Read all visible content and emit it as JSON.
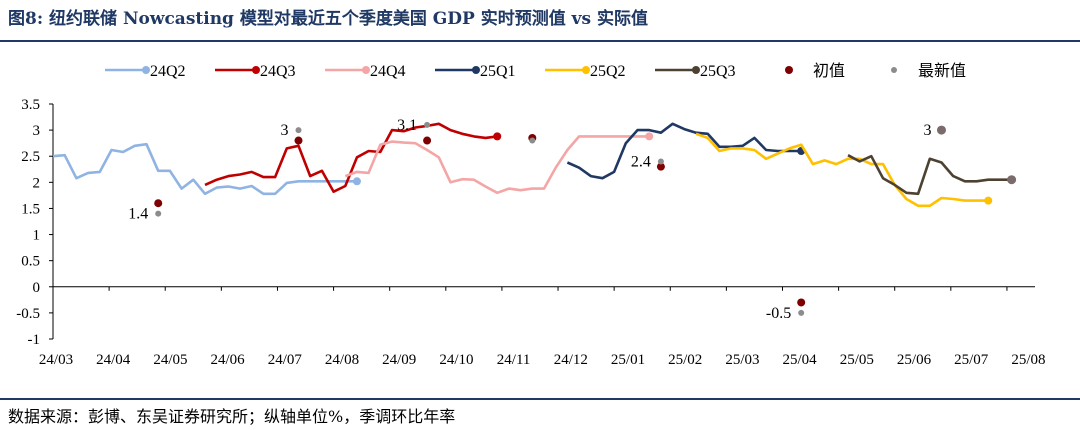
{
  "figure": {
    "title": "图8:  纽约联储 Nowcasting 模型对最近五个季度美国 GDP 实时预测值 vs 实际值",
    "source": "数据来源：彭博、东吴证券研究所；纵轴单位%，季调环比年率"
  },
  "colors": {
    "24Q2": "#8fb4e3",
    "24Q3": "#c00000",
    "24Q4": "#f4a6a6",
    "25Q1": "#1f3864",
    "25Q2": "#ffc000",
    "25Q3": "#4d4232",
    "initial": "#7f0000",
    "latest": "#8c8c8c",
    "title": "#1f3864"
  },
  "chart_data": {
    "type": "line",
    "ylim": [
      -1,
      3.5
    ],
    "yticks": [
      "3.5",
      "3",
      "2.5",
      "2",
      "1.5",
      "1",
      "0.5",
      "0",
      "-0.5",
      "-1"
    ],
    "xticks": [
      "24/03",
      "24/04",
      "24/05",
      "24/06",
      "24/07",
      "24/08",
      "24/09",
      "24/10",
      "24/11",
      "24/12",
      "25/01",
      "25/02",
      "25/03",
      "25/04",
      "25/05",
      "25/06",
      "25/07",
      "25/08"
    ],
    "legend_position": "top",
    "series": [
      {
        "name": "24Q2",
        "x": [
          0,
          1,
          2,
          3,
          4,
          5,
          6,
          7,
          8,
          9,
          10,
          11,
          12,
          13,
          14,
          15,
          16,
          17,
          18,
          19,
          20,
          21,
          22,
          23,
          24,
          25,
          26
        ],
        "values": [
          2.5,
          2.52,
          2.08,
          2.18,
          2.2,
          2.62,
          2.58,
          2.7,
          2.73,
          2.22,
          2.22,
          1.88,
          2.05,
          1.78,
          1.9,
          1.92,
          1.88,
          1.93,
          1.78,
          1.78,
          1.99,
          2.02,
          2.02,
          2.02,
          2.02,
          2.02,
          2.02
        ],
        "end_marker": true
      },
      {
        "name": "24Q3",
        "x": [
          13,
          14,
          15,
          16,
          17,
          18,
          19,
          20,
          21,
          22,
          23,
          24,
          25,
          26,
          27,
          28,
          29,
          30,
          31,
          32,
          33,
          34,
          35,
          36,
          37,
          38
        ],
        "values": [
          1.95,
          2.05,
          2.12,
          2.15,
          2.2,
          2.1,
          2.1,
          2.65,
          2.7,
          2.12,
          2.22,
          1.82,
          1.93,
          2.48,
          2.6,
          2.58,
          3.0,
          2.98,
          3.05,
          3.08,
          3.12,
          3.0,
          2.93,
          2.88,
          2.85,
          2.88
        ],
        "end_marker": true
      },
      {
        "name": "24Q4",
        "x": [
          25,
          26,
          27,
          28,
          29,
          30,
          31,
          32,
          33,
          34,
          35,
          36,
          37,
          38,
          39,
          40,
          41,
          42,
          43,
          44,
          45,
          46,
          47,
          48,
          49,
          50,
          51
        ],
        "values": [
          2.12,
          2.2,
          2.18,
          2.72,
          2.78,
          2.76,
          2.75,
          2.62,
          2.48,
          2.0,
          2.06,
          2.05,
          1.92,
          1.8,
          1.88,
          1.85,
          1.88,
          1.88,
          2.28,
          2.62,
          2.88,
          2.88,
          2.88,
          2.88,
          2.88,
          2.88,
          2.88
        ],
        "end_marker": true
      },
      {
        "name": "25Q1",
        "x": [
          44,
          45,
          46,
          47,
          48,
          49,
          50,
          51,
          52,
          53,
          54,
          55,
          56,
          57,
          58,
          59,
          60,
          61,
          62,
          63,
          64
        ],
        "values": [
          2.38,
          2.28,
          2.12,
          2.08,
          2.2,
          2.75,
          3.0,
          3.0,
          2.95,
          3.12,
          3.02,
          2.95,
          2.93,
          2.68,
          2.68,
          2.7,
          2.85,
          2.62,
          2.6,
          2.6,
          2.6
        ],
        "end_marker": true
      },
      {
        "name": "25Q2",
        "x": [
          55,
          56,
          57,
          58,
          59,
          60,
          61,
          62,
          63,
          64,
          65,
          66,
          67,
          68,
          69,
          70,
          71,
          72,
          73,
          74,
          75,
          76,
          77,
          78,
          79,
          80
        ],
        "values": [
          2.93,
          2.85,
          2.6,
          2.65,
          2.65,
          2.62,
          2.45,
          2.55,
          2.65,
          2.72,
          2.35,
          2.42,
          2.35,
          2.45,
          2.45,
          2.35,
          2.35,
          1.95,
          1.68,
          1.55,
          1.55,
          1.7,
          1.68,
          1.65,
          1.65,
          1.65
        ],
        "end_marker": true
      },
      {
        "name": "25Q3",
        "x": [
          68,
          69,
          70,
          71,
          72,
          73,
          74,
          75,
          76,
          77,
          78,
          79,
          80,
          81,
          82
        ],
        "values": [
          2.52,
          2.4,
          2.5,
          2.08,
          1.95,
          1.8,
          1.78,
          2.45,
          2.38,
          2.12,
          2.02,
          2.02,
          2.05,
          2.05,
          2.05
        ],
        "end_marker": true
      },
      {
        "name": "初值",
        "type": "scatter",
        "x": [
          9,
          21,
          32,
          41,
          52,
          64
        ],
        "values": [
          1.6,
          2.8,
          2.8,
          2.85,
          2.3,
          -0.3
        ]
      },
      {
        "name": "最新值",
        "type": "scatter",
        "x": [
          9,
          21,
          32,
          41,
          52,
          64
        ],
        "values": [
          1.4,
          3.0,
          3.1,
          2.8,
          2.4,
          -0.5
        ]
      }
    ],
    "annotations": [
      {
        "text": "1.4",
        "x": 9,
        "y": 1.4,
        "side": "left"
      },
      {
        "text": "3",
        "x": 21,
        "y": 3.0,
        "side": "left"
      },
      {
        "text": "3.1",
        "x": 32,
        "y": 3.1,
        "side": "left"
      },
      {
        "text": "2.4",
        "x": 52,
        "y": 2.4,
        "side": "left"
      },
      {
        "text": "-0.5",
        "x": 64,
        "y": -0.5,
        "side": "left"
      },
      {
        "text": "3",
        "x": 76,
        "y": 3.0,
        "side": "left"
      }
    ],
    "extra_points": [
      {
        "x": 76,
        "y": 3.0,
        "kind": "latest"
      },
      {
        "x": 82,
        "y": 2.05,
        "kind": "latest"
      }
    ]
  }
}
